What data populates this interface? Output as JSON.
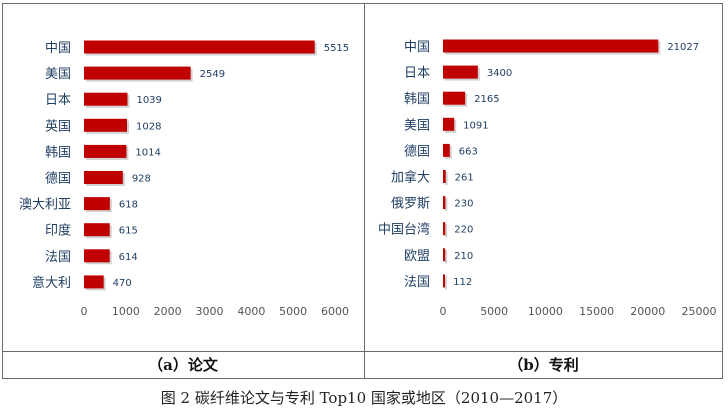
{
  "chart_data": [
    {
      "type": "bar",
      "orientation": "horizontal",
      "title": "（a）论文",
      "categories": [
        "中国",
        "美国",
        "日本",
        "英国",
        "韩国",
        "德国",
        "澳大利亚",
        "印度",
        "法国",
        "意大利"
      ],
      "values": [
        5515,
        2549,
        1039,
        1028,
        1014,
        928,
        618,
        615,
        614,
        470
      ],
      "value_labels": [
        "5515",
        "2549",
        "1039",
        "1028",
        "1014",
        "928",
        "618",
        "615",
        "614",
        "470"
      ],
      "xlim": [
        0,
        6000
      ],
      "xticks": [
        0,
        1000,
        2000,
        3000,
        4000,
        5000,
        6000
      ],
      "xtick_labels": [
        "0",
        "1000",
        "2000",
        "3000",
        "4000",
        "5000",
        "6000"
      ],
      "bar_color": "#c00000",
      "grid": false
    },
    {
      "type": "bar",
      "orientation": "horizontal",
      "title": "（b）专利",
      "categories": [
        "中国",
        "日本",
        "韩国",
        "美国",
        "德国",
        "加拿大",
        "俄罗斯",
        "中国台湾",
        "欧盟",
        "法国"
      ],
      "values": [
        21027,
        3400,
        2165,
        1091,
        663,
        261,
        230,
        220,
        210,
        112
      ],
      "value_labels": [
        "21027",
        "3400",
        "2165",
        "1091",
        "663",
        "261",
        "230",
        "220",
        "210",
        "112"
      ],
      "xlim": [
        0,
        25000
      ],
      "xticks": [
        0,
        5000,
        10000,
        15000,
        20000,
        25000
      ],
      "xtick_labels": [
        "0",
        "5000",
        "10000",
        "15000",
        "20000",
        "25000"
      ],
      "bar_color": "#c00000",
      "grid": false
    }
  ],
  "caption": "图 2  碳纤维论文与专利 Top10 国家或地区（2010—2017）"
}
